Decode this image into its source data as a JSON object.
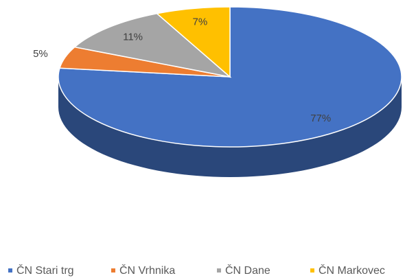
{
  "chart_data": {
    "type": "pie",
    "categories": [
      "ČN Stari trg",
      "ČN Vrhnika",
      "ČN Dane",
      "ČN Markovec"
    ],
    "values": [
      77,
      5,
      11,
      7
    ],
    "value_labels": [
      "77%",
      "5%",
      "11%",
      "7%"
    ],
    "colors": [
      "#4472c4",
      "#ed7d31",
      "#a5a5a5",
      "#ffc000"
    ],
    "legend": "bottom"
  }
}
